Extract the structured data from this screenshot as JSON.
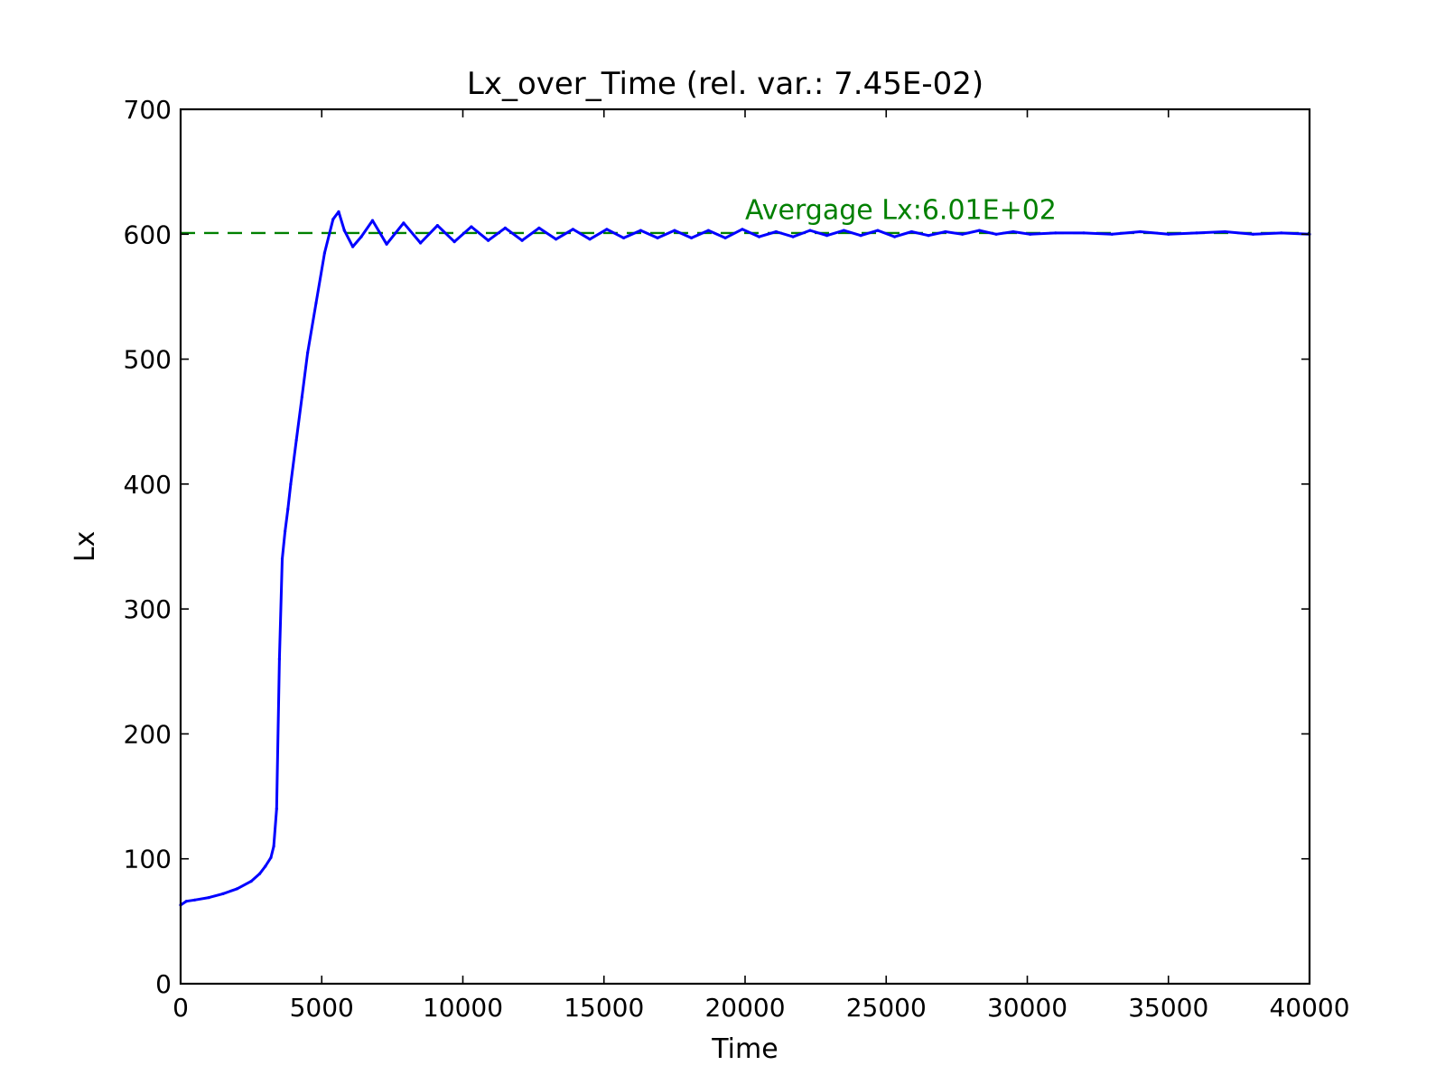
{
  "chart_data": {
    "type": "line",
    "title": "Lx_over_Time (rel. var.: 7.45E-02)",
    "xlabel": "Time",
    "ylabel": "Lx",
    "xlim": [
      0,
      40000
    ],
    "ylim": [
      0,
      700
    ],
    "xticks": [
      "0",
      "5000",
      "10000",
      "15000",
      "20000",
      "25000",
      "30000",
      "35000",
      "40000"
    ],
    "yticks": [
      "0",
      "100",
      "200",
      "300",
      "400",
      "500",
      "600",
      "700"
    ],
    "grid": false,
    "series": [
      {
        "color": "#0000ff",
        "style": "solid",
        "x": [
          0,
          200,
          500,
          1000,
          1500,
          2000,
          2500,
          2800,
          3000,
          3200,
          3300,
          3400,
          3500,
          3600,
          3700,
          3800,
          3900,
          4100,
          4300,
          4500,
          4800,
          5100,
          5400,
          5600,
          5800,
          6100,
          6400,
          6800,
          7300,
          7900,
          8500,
          9100,
          9700,
          10300,
          10900,
          11500,
          12100,
          12700,
          13300,
          13900,
          14500,
          15100,
          15700,
          16300,
          16900,
          17500,
          18100,
          18700,
          19300,
          19900,
          20500,
          21100,
          21700,
          22300,
          22900,
          23500,
          24100,
          24700,
          25300,
          25900,
          26500,
          27100,
          27700,
          28300,
          28900,
          29500,
          30100,
          31000,
          32000,
          33000,
          34000,
          35000,
          36000,
          37000,
          38000,
          39000,
          40000
        ],
        "y": [
          63,
          66,
          67,
          69,
          72,
          76,
          82,
          88,
          94,
          101,
          110,
          140,
          260,
          340,
          362,
          380,
          400,
          435,
          470,
          505,
          545,
          585,
          612,
          618,
          603,
          590,
          598,
          611,
          592,
          609,
          593,
          607,
          594,
          606,
          595,
          605,
          595,
          605,
          596,
          604,
          596,
          604,
          597,
          603,
          597,
          603,
          597,
          603,
          597,
          604,
          598,
          602,
          598,
          603,
          599,
          603,
          599,
          603,
          598,
          602,
          599,
          602,
          600,
          603,
          600,
          602,
          600,
          601,
          601,
          600,
          602,
          600,
          601,
          602,
          600,
          601,
          600
        ]
      }
    ],
    "reference_line": {
      "y": 601,
      "color": "#008000",
      "style": "dashed"
    },
    "annotation": {
      "text": "Avergage Lx:6.01E+02",
      "x": 20000,
      "y": 612,
      "color": "#008000"
    }
  }
}
